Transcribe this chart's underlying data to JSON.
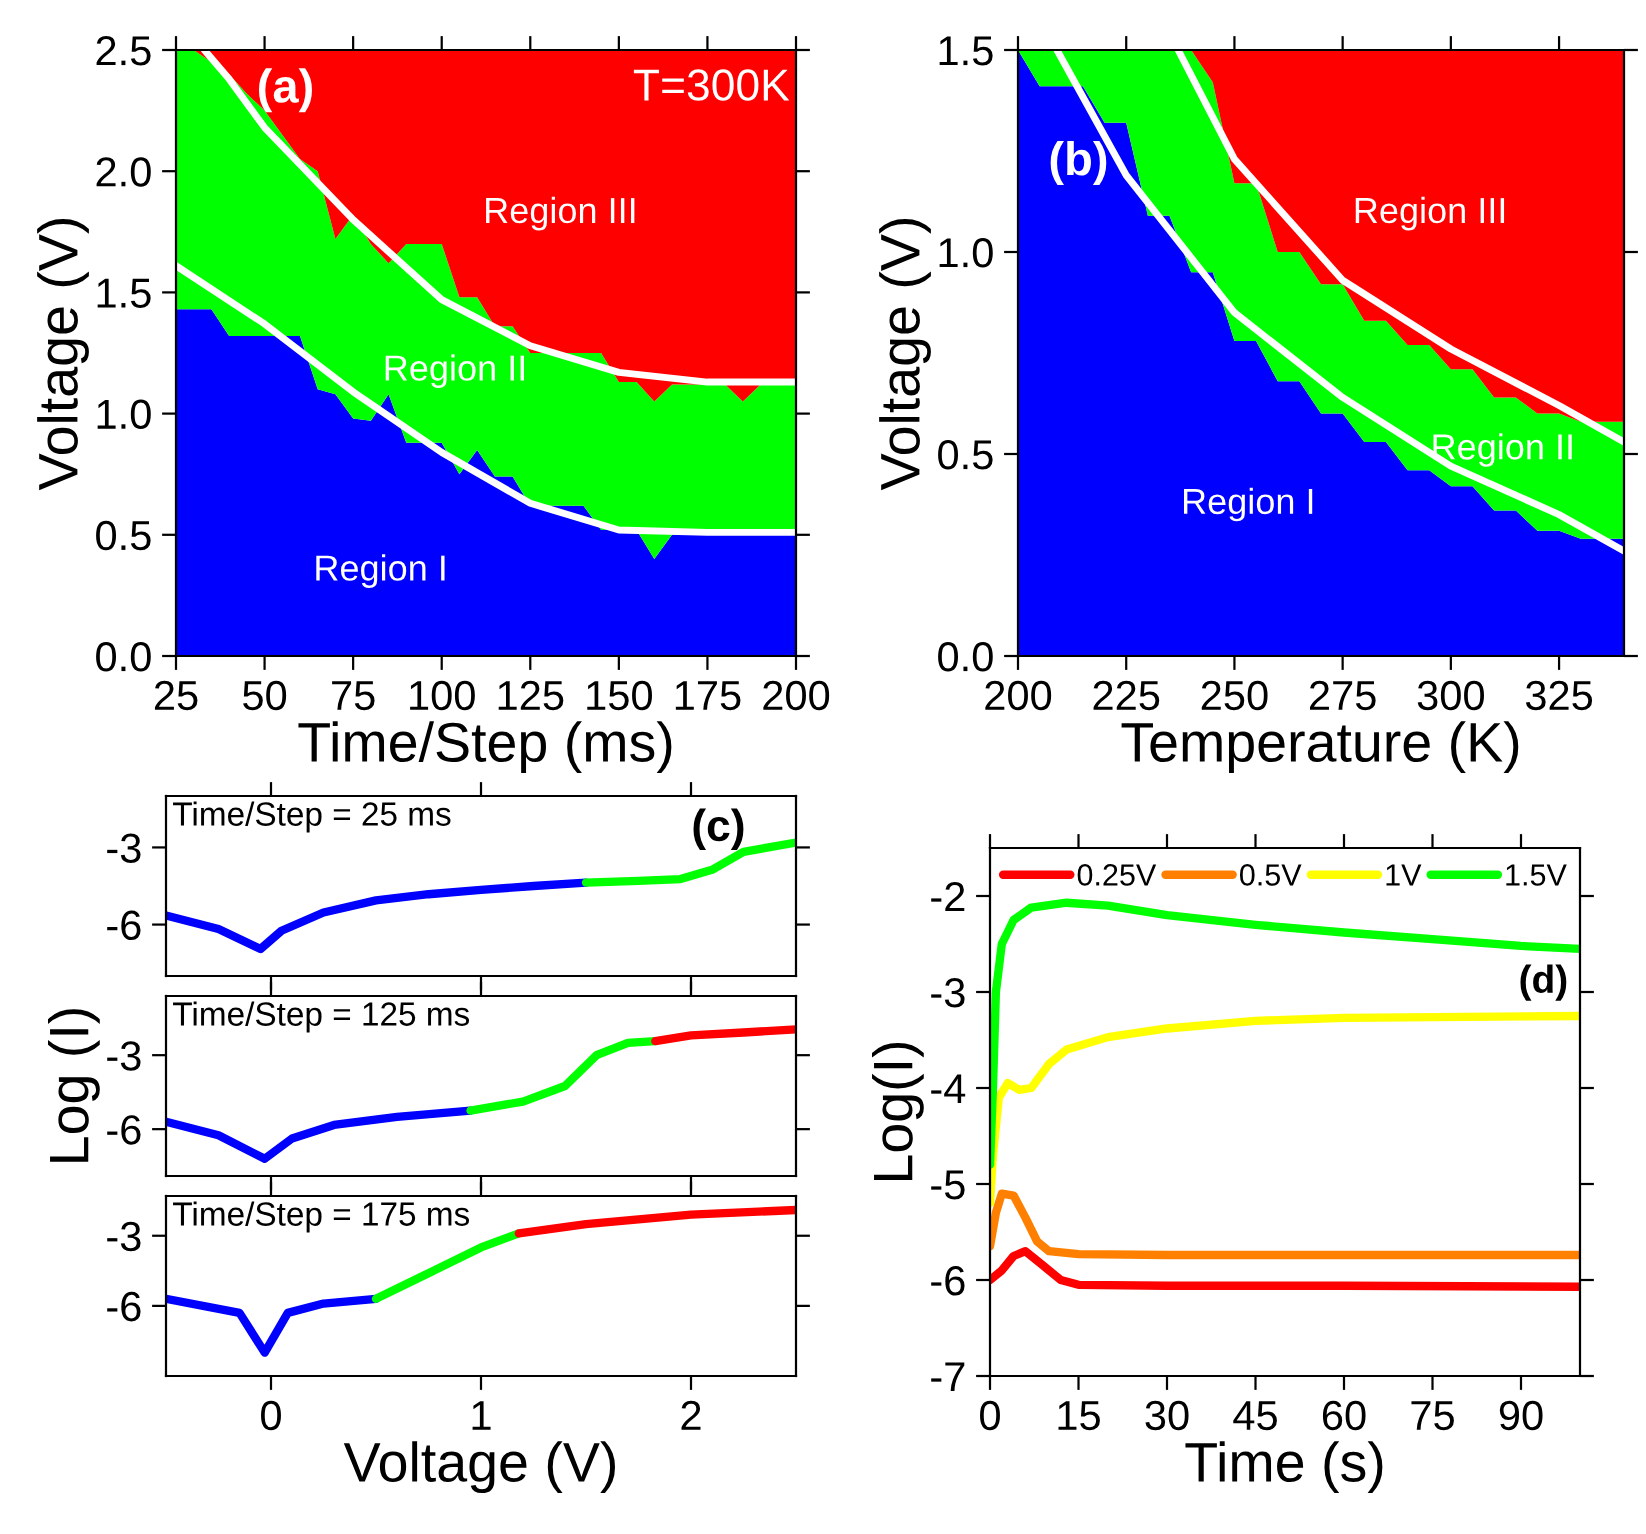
{
  "chart_data": [
    {
      "type": "area",
      "stacked": true,
      "xlabel": "Time/Step (ms)",
      "ylabel": "Voltage (V)",
      "legend": false,
      "grid": false,
      "annotations": [
        "(a)",
        "T=300K"
      ],
      "x": [
        25,
        30,
        35,
        40,
        45,
        50,
        55,
        60,
        65,
        70,
        75,
        80,
        85,
        90,
        95,
        100,
        105,
        110,
        115,
        120,
        125,
        130,
        135,
        140,
        145,
        150,
        155,
        160,
        165,
        170,
        175,
        180,
        185,
        190,
        195,
        200
      ],
      "xlim": [
        25,
        200
      ],
      "xticks": [
        25,
        50,
        75,
        100,
        125,
        150,
        175,
        200
      ],
      "ylim": [
        0,
        2.5
      ],
      "yticks": [
        {
          "value": 0,
          "label": "0.0"
        },
        {
          "value": 0.5,
          "label": "0.5"
        },
        {
          "value": 1,
          "label": "1.0"
        },
        {
          "value": 1.5,
          "label": "1.5"
        },
        {
          "value": 2,
          "label": "2.0"
        },
        {
          "value": 2.5,
          "label": "2.5"
        }
      ],
      "series": [
        {
          "name": "Region I",
          "color": "#0000ff",
          "values": [
            1.43,
            1.43,
            1.43,
            1.32,
            1.32,
            1.32,
            1.32,
            1.32,
            1.1,
            1.08,
            0.98,
            0.97,
            1.08,
            0.88,
            0.88,
            0.88,
            0.75,
            0.85,
            0.74,
            0.74,
            0.62,
            0.62,
            0.62,
            0.62,
            0.52,
            0.52,
            0.52,
            0.4,
            0.5,
            0.5,
            0.5,
            0.5,
            0.5,
            0.5,
            0.5,
            0.5
          ]
        },
        {
          "name": "Region II",
          "color": "#00ff00",
          "values": [
            1.07,
            1.07,
            1.02,
            1.08,
            1.0,
            0.93,
            0.83,
            0.73,
            0.9,
            0.64,
            0.84,
            0.73,
            0.54,
            0.82,
            0.82,
            0.82,
            0.73,
            0.63,
            0.62,
            0.62,
            0.63,
            0.63,
            0.63,
            0.63,
            0.73,
            0.61,
            0.61,
            0.65,
            0.62,
            0.62,
            0.62,
            0.62,
            0.55,
            0.62,
            0.62,
            0.62
          ]
        },
        {
          "name": "Region III",
          "color": "#ff0000",
          "values": [
            0,
            0,
            0.05,
            0.1,
            0.18,
            0.25,
            0.35,
            0.45,
            0.5,
            0.78,
            0.68,
            0.8,
            0.88,
            0.8,
            0.8,
            0.8,
            1.02,
            1.02,
            1.14,
            1.14,
            1.25,
            1.25,
            1.25,
            1.25,
            1.25,
            1.37,
            1.37,
            1.45,
            1.38,
            1.38,
            1.38,
            1.38,
            1.45,
            1.38,
            1.38,
            1.38
          ]
        },
        {
          "type": "line",
          "color": "#ffffff",
          "x": [
            25,
            50,
            75,
            100,
            125,
            150,
            175,
            200
          ],
          "values": [
            1.61,
            1.37,
            1.09,
            0.84,
            0.63,
            0.52,
            0.51,
            0.51
          ]
        },
        {
          "type": "line",
          "color": "#ffffff",
          "x": [
            33,
            40,
            50,
            75,
            100,
            125,
            150,
            175,
            200
          ],
          "values": [
            2.5,
            2.38,
            2.18,
            1.8,
            1.47,
            1.28,
            1.17,
            1.13,
            1.13
          ]
        }
      ]
    },
    {
      "type": "area",
      "stacked": true,
      "xlabel": "Temperature (K)",
      "ylabel": "Voltage (V)",
      "legend": false,
      "grid": false,
      "annotations": [
        "(b)"
      ],
      "x": [
        200,
        205,
        210,
        215,
        220,
        225,
        230,
        235,
        240,
        245,
        250,
        255,
        260,
        265,
        270,
        275,
        280,
        285,
        290,
        295,
        300,
        305,
        310,
        315,
        320,
        325,
        330,
        335,
        340
      ],
      "xlim": [
        200,
        340
      ],
      "xticks": [
        200,
        225,
        250,
        275,
        300,
        325
      ],
      "ylim": [
        0,
        1.5
      ],
      "yticks": [
        {
          "value": 0,
          "label": "0.0"
        },
        {
          "value": 0.5,
          "label": "0.5"
        },
        {
          "value": 1,
          "label": "1.0"
        },
        {
          "value": 1.5,
          "label": "1.5"
        }
      ],
      "series": [
        {
          "name": "Region I",
          "color": "#0000ff",
          "values": [
            1.5,
            1.41,
            1.41,
            1.41,
            1.32,
            1.32,
            1.09,
            1.09,
            0.95,
            0.95,
            0.78,
            0.78,
            0.68,
            0.68,
            0.6,
            0.6,
            0.53,
            0.53,
            0.46,
            0.46,
            0.42,
            0.42,
            0.36,
            0.36,
            0.31,
            0.31,
            0.29,
            0.29,
            0.29
          ]
        },
        {
          "name": "Region II",
          "color": "#00ff00",
          "values": [
            0,
            0.09,
            0.09,
            0.09,
            0.18,
            0.18,
            0.41,
            0.41,
            0.55,
            0.47,
            0.39,
            0.39,
            0.32,
            0.32,
            0.32,
            0.32,
            0.3,
            0.3,
            0.31,
            0.31,
            0.29,
            0.29,
            0.28,
            0.28,
            0.29,
            0.29,
            0.29,
            0.29,
            0.29
          ]
        },
        {
          "name": "Region III",
          "color": "#ff0000",
          "values": [
            0,
            0,
            0,
            0,
            0,
            0,
            0,
            0,
            0,
            0.08,
            0.33,
            0.33,
            0.5,
            0.5,
            0.58,
            0.58,
            0.67,
            0.67,
            0.73,
            0.73,
            0.79,
            0.79,
            0.86,
            0.86,
            0.9,
            0.9,
            0.92,
            0.92,
            0.92
          ]
        },
        {
          "type": "line",
          "color": "#ffffff",
          "x": [
            209,
            225,
            250,
            275,
            300,
            325,
            340
          ],
          "values": [
            1.5,
            1.19,
            0.85,
            0.64,
            0.47,
            0.35,
            0.26
          ]
        },
        {
          "type": "line",
          "color": "#ffffff",
          "x": [
            237,
            250,
            275,
            300,
            325,
            340
          ],
          "values": [
            1.5,
            1.23,
            0.93,
            0.76,
            0.62,
            0.53
          ]
        }
      ]
    },
    {
      "type": "line",
      "annotations": [
        "Time/Step = 25 ms",
        "(c)"
      ],
      "tick_labels": "y",
      "grid": false,
      "legend": false,
      "xlim": [
        -0.5,
        2.5
      ],
      "xticks": [
        0,
        1,
        2
      ],
      "ylim": [
        -8,
        -1
      ],
      "yticks": [
        -6,
        -3
      ],
      "series": [
        {
          "color": "#0000ff",
          "x": [
            -0.5,
            -0.25,
            -0.05,
            0.05,
            0.25,
            0.5,
            0.75,
            1.0,
            1.25,
            1.5
          ],
          "values": [
            -5.65,
            -6.17,
            -6.95,
            -6.24,
            -5.53,
            -5.06,
            -4.82,
            -4.65,
            -4.5,
            -4.37
          ]
        },
        {
          "color": "#00ff00",
          "x": [
            1.5,
            1.75,
            1.95,
            2.1,
            2.25,
            2.5
          ],
          "values": [
            -4.37,
            -4.3,
            -4.23,
            -3.87,
            -3.17,
            -2.81
          ]
        }
      ]
    },
    {
      "type": "line",
      "annotations": [
        "Time/Step = 125 ms"
      ],
      "ylabel": "Log (I)",
      "tick_labels": "y",
      "grid": false,
      "legend": false,
      "xlim": [
        -0.5,
        2.5
      ],
      "xticks": [
        0,
        1,
        2
      ],
      "ylim": [
        -7.9,
        -0.6
      ],
      "yticks": [
        -6,
        -3
      ],
      "series": [
        {
          "color": "#0000ff",
          "x": [
            -0.5,
            -0.25,
            -0.03,
            0.1,
            0.3,
            0.6,
            0.95
          ],
          "values": [
            -5.7,
            -6.25,
            -7.2,
            -6.38,
            -5.83,
            -5.5,
            -5.25
          ]
        },
        {
          "color": "#00ff00",
          "x": [
            0.95,
            1.2,
            1.4,
            1.55,
            1.7,
            1.83
          ],
          "values": [
            -5.25,
            -4.88,
            -4.25,
            -3.0,
            -2.5,
            -2.43
          ]
        },
        {
          "color": "#ff0000",
          "x": [
            1.83,
            2.0,
            2.25,
            2.5
          ],
          "values": [
            -2.43,
            -2.2,
            -2.08,
            -1.95
          ]
        }
      ]
    },
    {
      "type": "line",
      "annotations": [
        "Time/Step = 175 ms"
      ],
      "xlabel": "Voltage (V)",
      "grid": false,
      "legend": false,
      "xlim": [
        -0.5,
        2.5
      ],
      "xticks": [
        0,
        1,
        2
      ],
      "ylim": [
        -9,
        -1.3
      ],
      "yticks": [
        -6,
        -3
      ],
      "series": [
        {
          "color": "#0000ff",
          "x": [
            -0.5,
            -0.15,
            -0.03,
            0.08,
            0.25,
            0.5
          ],
          "values": [
            -5.7,
            -6.3,
            -8.0,
            -6.3,
            -5.9,
            -5.7
          ]
        },
        {
          "color": "#00ff00",
          "x": [
            0.5,
            0.75,
            1.0,
            1.18
          ],
          "values": [
            -5.7,
            -4.6,
            -3.5,
            -2.9
          ]
        },
        {
          "color": "#ff0000",
          "x": [
            1.18,
            1.5,
            2.0,
            2.5
          ],
          "values": [
            -2.9,
            -2.5,
            -2.1,
            -1.9
          ]
        }
      ]
    },
    {
      "type": "line",
      "annotations": [
        "(d)"
      ],
      "xlabel": "Time (s)",
      "ylabel": "Log(I)",
      "grid": false,
      "legend": "top",
      "xlim": [
        0,
        100
      ],
      "xticks": [
        0,
        15,
        30,
        45,
        60,
        75,
        90
      ],
      "ylim": [
        -7,
        -1.5
      ],
      "yticks": [
        -7,
        -6,
        -5,
        -4,
        -3,
        -2
      ],
      "series": [
        {
          "name": "0.25V",
          "color": "#ff0000",
          "x": [
            0,
            2,
            4,
            6,
            9,
            12,
            15,
            30,
            60,
            100
          ],
          "values": [
            -6.0,
            -5.9,
            -5.75,
            -5.7,
            -5.85,
            -6.0,
            -6.05,
            -6.06,
            -6.06,
            -6.07
          ]
        },
        {
          "name": "0.5V",
          "color": "#ff8000",
          "x": [
            0,
            1,
            2,
            4,
            6,
            8,
            10,
            15,
            30,
            100
          ],
          "values": [
            -5.65,
            -5.3,
            -5.1,
            -5.12,
            -5.35,
            -5.6,
            -5.7,
            -5.73,
            -5.74,
            -5.74
          ]
        },
        {
          "name": "1V",
          "color": "#ffff00",
          "x": [
            0,
            0.5,
            1.5,
            3,
            5,
            7,
            10,
            13,
            20,
            30,
            45,
            60,
            100
          ],
          "values": [
            -5.2,
            -4.7,
            -4.1,
            -3.95,
            -4.02,
            -4.0,
            -3.75,
            -3.6,
            -3.47,
            -3.38,
            -3.3,
            -3.27,
            -3.25
          ]
        },
        {
          "name": "1.5V",
          "color": "#00ff00",
          "x": [
            0,
            0.5,
            1,
            2,
            4,
            7,
            13,
            20,
            30,
            45,
            60,
            75,
            90,
            100
          ],
          "values": [
            -4.8,
            -4.0,
            -3.0,
            -2.5,
            -2.25,
            -2.12,
            -2.07,
            -2.1,
            -2.2,
            -2.3,
            -2.38,
            -2.45,
            -2.52,
            -2.55
          ]
        }
      ]
    }
  ]
}
